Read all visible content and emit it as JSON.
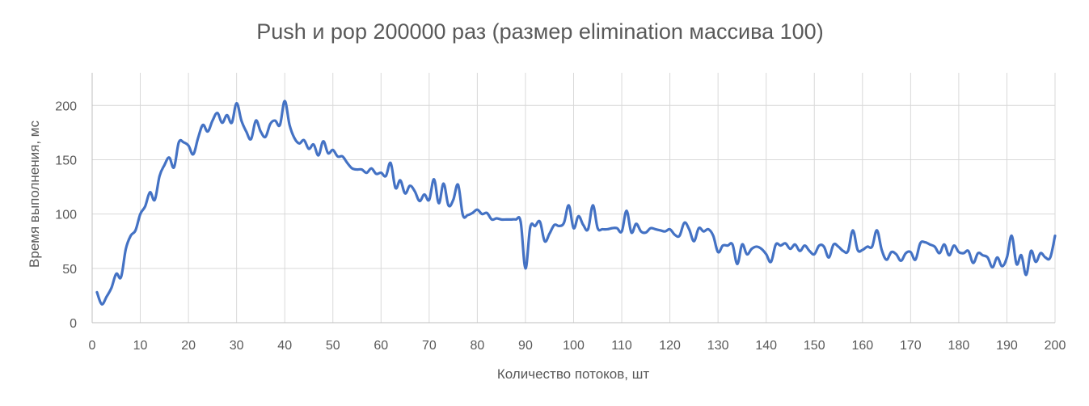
{
  "chart_data": {
    "type": "line",
    "title": "Push и pop 200000 раз (размер elimination массива 100)",
    "xlabel": "Количество потоков, шт",
    "ylabel": "Время выполнения, мс",
    "xlim": [
      0,
      200
    ],
    "ylim": [
      0,
      230
    ],
    "x_ticks": [
      0,
      10,
      20,
      30,
      40,
      50,
      60,
      70,
      80,
      90,
      100,
      110,
      120,
      130,
      140,
      150,
      160,
      170,
      180,
      190,
      200
    ],
    "y_ticks": [
      0,
      50,
      100,
      150,
      200
    ],
    "grid": true,
    "legend": "none",
    "series": [
      {
        "color": "#4472c4",
        "x": [
          1,
          2,
          3,
          4,
          5,
          6,
          7,
          8,
          9,
          10,
          11,
          12,
          13,
          14,
          15,
          16,
          17,
          18,
          19,
          20,
          21,
          22,
          23,
          24,
          25,
          26,
          27,
          28,
          29,
          30,
          31,
          32,
          33,
          34,
          35,
          36,
          37,
          38,
          39,
          40,
          41,
          42,
          43,
          44,
          45,
          46,
          47,
          48,
          49,
          50,
          51,
          52,
          53,
          54,
          55,
          56,
          57,
          58,
          59,
          60,
          61,
          62,
          63,
          64,
          65,
          66,
          67,
          68,
          69,
          70,
          71,
          72,
          73,
          74,
          75,
          76,
          77,
          78,
          79,
          80,
          81,
          82,
          83,
          84,
          85,
          86,
          87,
          88,
          89,
          90,
          91,
          92,
          93,
          94,
          95,
          96,
          97,
          98,
          99,
          100,
          101,
          102,
          103,
          104,
          105,
          106,
          107,
          108,
          109,
          110,
          111,
          112,
          113,
          114,
          115,
          116,
          117,
          118,
          119,
          120,
          121,
          122,
          123,
          124,
          125,
          126,
          127,
          128,
          129,
          130,
          131,
          132,
          133,
          134,
          135,
          136,
          137,
          138,
          139,
          140,
          141,
          142,
          143,
          144,
          145,
          146,
          147,
          148,
          149,
          150,
          151,
          152,
          153,
          154,
          155,
          156,
          157,
          158,
          159,
          160,
          161,
          162,
          163,
          164,
          165,
          166,
          167,
          168,
          169,
          170,
          171,
          172,
          173,
          174,
          175,
          176,
          177,
          178,
          179,
          180,
          181,
          182,
          183,
          184,
          185,
          186,
          187,
          188,
          189,
          190,
          191,
          192,
          193,
          194,
          195,
          196,
          197,
          198,
          199,
          200
        ],
        "y": [
          28,
          17,
          24,
          32,
          45,
          42,
          68,
          80,
          85,
          100,
          107,
          120,
          113,
          135,
          145,
          152,
          143,
          166,
          166,
          163,
          155,
          170,
          182,
          176,
          186,
          193,
          184,
          191,
          184,
          202,
          186,
          176,
          169,
          186,
          176,
          171,
          183,
          186,
          182,
          204,
          182,
          170,
          165,
          168,
          160,
          164,
          154,
          167,
          156,
          159,
          153,
          153,
          147,
          142,
          141,
          141,
          138,
          142,
          137,
          138,
          135,
          147,
          124,
          131,
          119,
          126,
          121,
          112,
          118,
          113,
          132,
          110,
          128,
          108,
          113,
          127,
          99,
          99,
          101,
          104,
          100,
          101,
          95,
          96,
          95,
          95,
          95,
          95,
          93,
          50,
          88,
          89,
          93,
          75,
          82,
          90,
          89,
          92,
          108,
          87,
          98,
          90,
          86,
          108,
          87,
          86,
          86,
          87,
          87,
          84,
          103,
          83,
          91,
          84,
          83,
          87,
          86,
          85,
          84,
          86,
          81,
          80,
          92,
          86,
          75,
          87,
          84,
          86,
          80,
          65,
          71,
          71,
          72,
          54,
          72,
          63,
          68,
          70,
          68,
          63,
          56,
          72,
          71,
          73,
          68,
          72,
          66,
          71,
          66,
          63,
          71,
          70,
          60,
          72,
          70,
          66,
          66,
          85,
          67,
          67,
          70,
          70,
          85,
          67,
          58,
          65,
          63,
          57,
          64,
          65,
          58,
          73,
          74,
          72,
          70,
          64,
          72,
          62,
          71,
          65,
          64,
          66,
          55,
          64,
          62,
          60,
          51,
          60,
          52,
          60,
          80,
          54,
          62,
          44,
          66,
          56,
          64,
          60,
          60,
          80
        ]
      }
    ]
  }
}
